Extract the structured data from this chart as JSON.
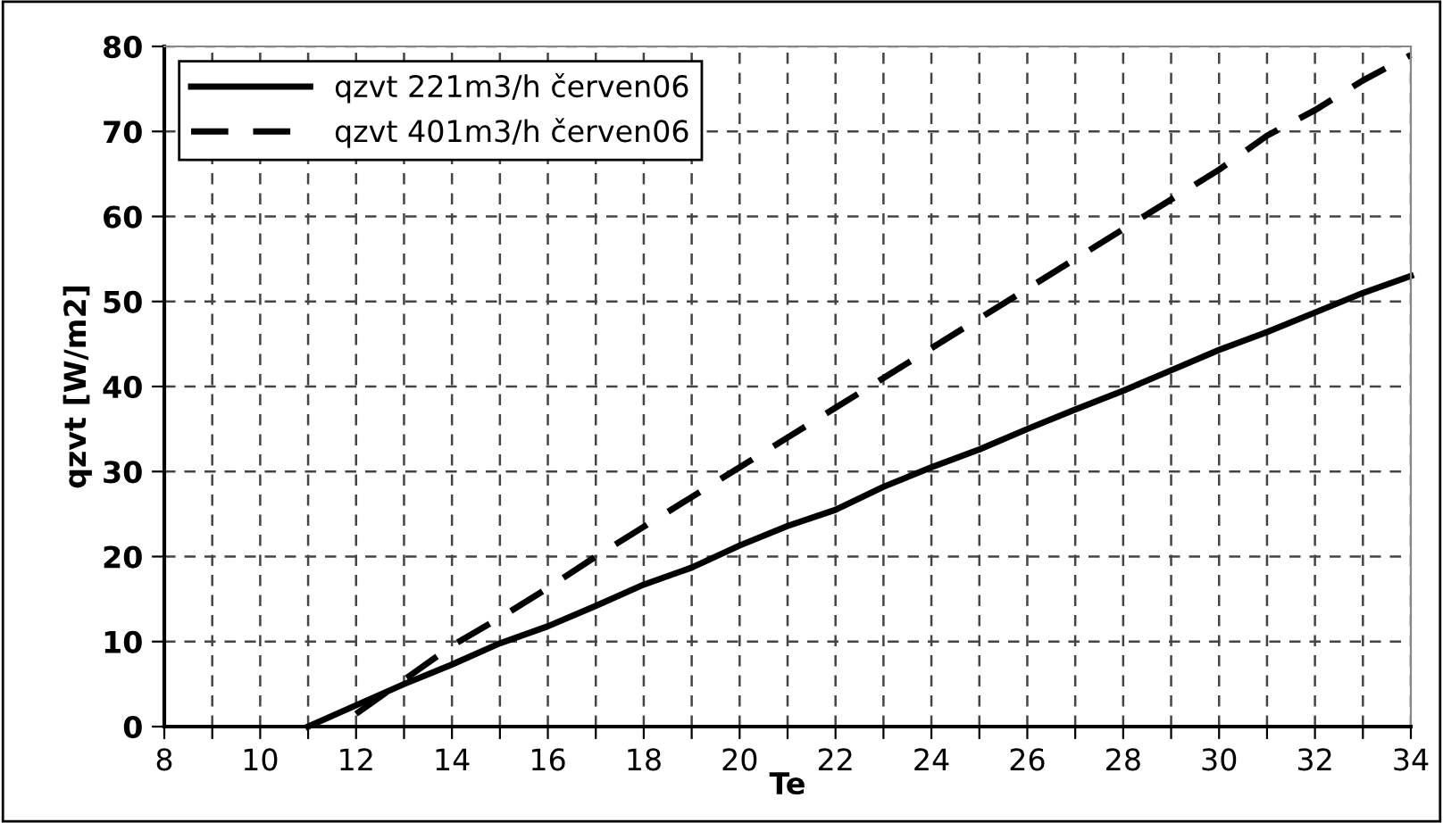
{
  "chart_data": {
    "type": "line",
    "xlabel": "Te",
    "ylabel": "qzvt [W/m2]",
    "x": [
      11,
      12,
      13,
      14,
      15,
      16,
      17,
      18,
      19,
      20,
      21,
      22,
      23,
      24,
      25,
      26,
      27,
      28,
      29,
      30,
      31,
      32,
      33,
      34
    ],
    "series": [
      {
        "name": "qzvt 221m3/h červen06",
        "color": "#000000",
        "line_style": "solid",
        "values": [
          0,
          2.5,
          5,
          7.3,
          9.8,
          11.8,
          14.2,
          16.7,
          18.7,
          21.3,
          23.6,
          25.5,
          28.2,
          30.5,
          32.6,
          35,
          37.3,
          39.5,
          41.9,
          44.3,
          46.4,
          48.7,
          51,
          53
        ]
      },
      {
        "name": "qzvt 401m3/h červen06",
        "color": "#000000",
        "line_style": "dashed",
        "values": [
          null,
          1.5,
          5.5,
          9.5,
          12.8,
          16.3,
          20,
          23.5,
          27,
          30.5,
          34,
          37.5,
          41,
          44.5,
          48,
          51.5,
          55,
          58.5,
          62,
          65.5,
          69.5,
          72.5,
          76,
          79
        ]
      }
    ],
    "xlim": [
      8,
      34
    ],
    "ylim": [
      0,
      80
    ],
    "xticks": [
      8,
      {
        "value": 9,
        "label": null
      },
      10,
      {
        "value": 11,
        "label": null
      },
      12,
      {
        "value": 13,
        "label": null
      },
      14,
      {
        "value": 15,
        "label": null
      },
      16,
      {
        "value": 17,
        "label": null
      },
      18,
      {
        "value": 19,
        "label": null
      },
      20,
      {
        "value": 21,
        "label": null
      },
      22,
      {
        "value": 23,
        "label": null
      },
      24,
      {
        "value": 25,
        "label": null
      },
      26,
      {
        "value": 27,
        "label": null
      },
      28,
      {
        "value": 29,
        "label": null
      },
      30,
      {
        "value": 31,
        "label": null
      },
      32,
      {
        "value": 33,
        "label": null
      },
      34
    ],
    "yticks": [
      0,
      10,
      20,
      30,
      40,
      50,
      60,
      70,
      80
    ],
    "grid": true,
    "legend": "top left",
    "marker": "none"
  }
}
